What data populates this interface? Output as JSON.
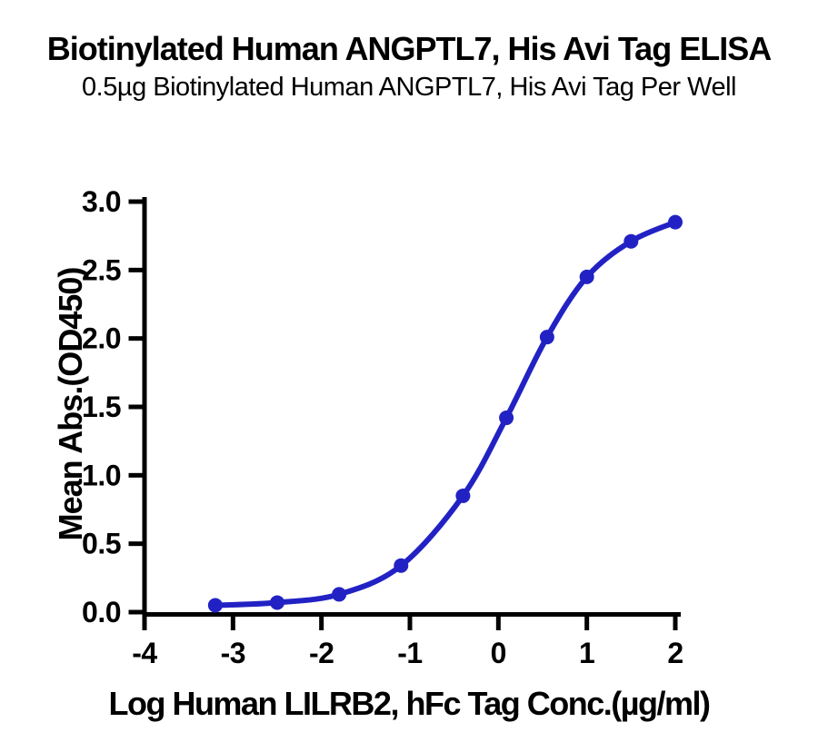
{
  "chart_data": {
    "type": "line",
    "title": "Biotinylated Human ANGPTL7, His Avi Tag ELISA",
    "subtitle": "0.5µg Biotinylated Human ANGPTL7, His Avi Tag Per Well",
    "xlabel": "Log Human LILRB2, hFc Tag Conc.(µg/ml)",
    "ylabel": "Mean Abs.(OD450)",
    "x": [
      -3.2,
      -2.5,
      -1.8,
      -1.1,
      -0.4,
      0.09,
      0.55,
      1.0,
      1.5,
      2.0
    ],
    "y": [
      0.05,
      0.07,
      0.13,
      0.34,
      0.85,
      1.42,
      2.01,
      2.45,
      2.71,
      2.85
    ],
    "xlim": [
      -4,
      2
    ],
    "ylim": [
      0,
      3
    ],
    "xticks": [
      -4,
      -3,
      -2,
      -1,
      0,
      1,
      2
    ],
    "xtick_labels": [
      "-4",
      "-3",
      "-2",
      "-1",
      "0",
      "1",
      "2"
    ],
    "yticks": [
      0,
      0.5,
      1,
      1.5,
      2,
      2.5,
      3
    ],
    "ytick_labels": [
      "0.0",
      "0.5",
      "1.0",
      "1.5",
      "2.0",
      "2.5",
      "3.0"
    ],
    "grid": false,
    "legend": "none",
    "curve": "sigmoidal-4PL",
    "line_color": "#2222c4",
    "marker_color": "#2222c4",
    "marker_style": "circle",
    "axis_color": "#000000"
  }
}
